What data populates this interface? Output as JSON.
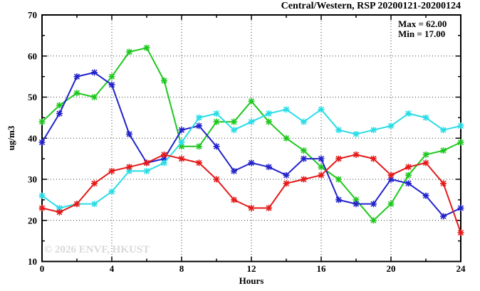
{
  "chart_data": {
    "type": "line",
    "title": "Central/Western, RSP 20200121-20200124",
    "annotations": [
      "Max = 62.00",
      "Min = 17.00"
    ],
    "watermark": "© 2026 ENVF, HKUST",
    "xlabel": "Hours",
    "ylabel": "ug/m3",
    "xlim": [
      0,
      24
    ],
    "ylim": [
      10,
      70
    ],
    "xticks_major": [
      0,
      4,
      8,
      12,
      16,
      20,
      24
    ],
    "xticks_minor": [
      2,
      6,
      10,
      14,
      18,
      22
    ],
    "yticks_major": [
      10,
      20,
      30,
      40,
      50,
      60,
      70
    ],
    "yticks_minor": [
      15,
      25,
      35,
      45,
      55,
      65
    ],
    "xgrid": [
      4,
      8,
      12,
      16,
      20
    ],
    "ygrid": [
      20,
      30,
      40,
      50,
      60
    ],
    "grid_style": "dotted",
    "legend": "none",
    "x": [
      0,
      1,
      2,
      3,
      4,
      5,
      6,
      7,
      8,
      9,
      10,
      11,
      12,
      13,
      14,
      15,
      16,
      17,
      18,
      19,
      20,
      21,
      22,
      23,
      24
    ],
    "series": [
      {
        "name": "series-green",
        "color": "#1ec81e",
        "values": [
          44,
          48,
          51,
          50,
          55,
          61,
          62,
          54,
          38,
          38,
          44,
          44,
          49,
          44,
          40,
          37,
          33,
          30,
          25,
          20,
          24,
          31,
          36,
          37,
          39
        ]
      },
      {
        "name": "series-blue",
        "color": "#2222cc",
        "values": [
          39,
          46,
          55,
          56,
          53,
          41,
          34,
          35,
          42,
          43,
          38,
          32,
          34,
          33,
          31,
          35,
          35,
          25,
          24,
          24,
          30,
          29,
          26,
          21,
          23
        ]
      },
      {
        "name": "series-cyan",
        "color": "#2adce6",
        "values": [
          26,
          23,
          24,
          24,
          27,
          32,
          32,
          34,
          39,
          45,
          46,
          42,
          44,
          46,
          47,
          44,
          47,
          42,
          41,
          42,
          43,
          46,
          45,
          42,
          43
        ]
      },
      {
        "name": "series-red",
        "color": "#e51919",
        "values": [
          23,
          22,
          24,
          29,
          32,
          33,
          34,
          36,
          35,
          34,
          30,
          25,
          23,
          23,
          29,
          30,
          31,
          35,
          36,
          35,
          31,
          33,
          34,
          29,
          17
        ]
      }
    ]
  }
}
